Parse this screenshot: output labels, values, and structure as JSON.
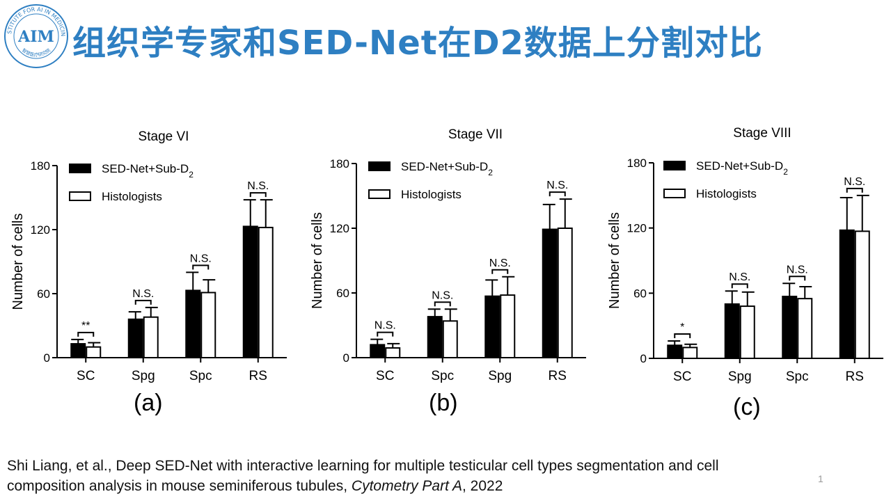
{
  "slide": {
    "title": "组织学专家和SED-Net在D2数据上分割对比",
    "logo": {
      "text": "INSTITUTE FOR AI IN MEDICINE",
      "mark": "AIM",
      "cn": "智慧医疗研究院"
    },
    "citation": {
      "line1": "Shi Liang, et al., Deep SED-Net with interactive learning for multiple testicular cell types segmentation and cell",
      "line2_pre": "composition analysis in mouse seminiferous tubules, ",
      "journal": "Cytometry Part A",
      "line2_post": ", 2022"
    },
    "page_number": "1"
  },
  "colors": {
    "title": "#2e7fc2",
    "bar_fill_a": "#000000",
    "bar_fill_b": "#ffffff",
    "axis": "#000000"
  },
  "chart_data": [
    {
      "type": "bar",
      "panel_label": "(a)",
      "title": "Stage VI",
      "ylabel": "Number of cells",
      "xlabel": "",
      "ylim": [
        0,
        180
      ],
      "yticks": [
        0,
        60,
        120,
        180
      ],
      "categories": [
        "SC",
        "Spg",
        "Spc",
        "RS"
      ],
      "legend": {
        "position": "top-left",
        "entries": [
          "SED-Net+Sub-D2",
          "Histologists"
        ]
      },
      "series": [
        {
          "name": "SED-Net+Sub-D2",
          "values": [
            13,
            36,
            63,
            123
          ],
          "errors": [
            4,
            7,
            17,
            25
          ]
        },
        {
          "name": "Histologists",
          "values": [
            10,
            38,
            61,
            122
          ],
          "errors": [
            4,
            9,
            12,
            26
          ]
        }
      ],
      "significance": [
        "**",
        "N.S.",
        "N.S.",
        "N.S."
      ]
    },
    {
      "type": "bar",
      "panel_label": "(b)",
      "title": "Stage VII",
      "ylabel": "Number of cells",
      "xlabel": "",
      "ylim": [
        0,
        180
      ],
      "yticks": [
        0,
        60,
        120,
        180
      ],
      "categories": [
        "SC",
        "Spc",
        "Spg",
        "RS"
      ],
      "legend": {
        "position": "top-left",
        "entries": [
          "SED-Net+Sub-D2",
          "Histologists"
        ]
      },
      "series": [
        {
          "name": "SED-Net+Sub-D2",
          "values": [
            12,
            38,
            57,
            119
          ],
          "errors": [
            5,
            7,
            15,
            23
          ]
        },
        {
          "name": "Histologists",
          "values": [
            9,
            34,
            58,
            120
          ],
          "errors": [
            4,
            11,
            17,
            27
          ]
        }
      ],
      "significance": [
        "N.S.",
        "N.S.",
        "N.S.",
        "N.S."
      ]
    },
    {
      "type": "bar",
      "panel_label": "(c)",
      "title": "Stage VIII",
      "ylabel": "Number of cells",
      "xlabel": "",
      "ylim": [
        0,
        180
      ],
      "yticks": [
        0,
        60,
        120,
        180
      ],
      "categories": [
        "SC",
        "Spg",
        "Spc",
        "RS"
      ],
      "legend": {
        "position": "top-left",
        "entries": [
          "SED-Net+Sub-D2",
          "Histologists"
        ]
      },
      "series": [
        {
          "name": "SED-Net+Sub-D2",
          "values": [
            12,
            50,
            57,
            118
          ],
          "errors": [
            4,
            12,
            12,
            30
          ]
        },
        {
          "name": "Histologists",
          "values": [
            10,
            48,
            55,
            117
          ],
          "errors": [
            3,
            13,
            11,
            33
          ]
        }
      ],
      "significance": [
        "*",
        "N.S.",
        "N.S.",
        "N.S."
      ]
    }
  ]
}
